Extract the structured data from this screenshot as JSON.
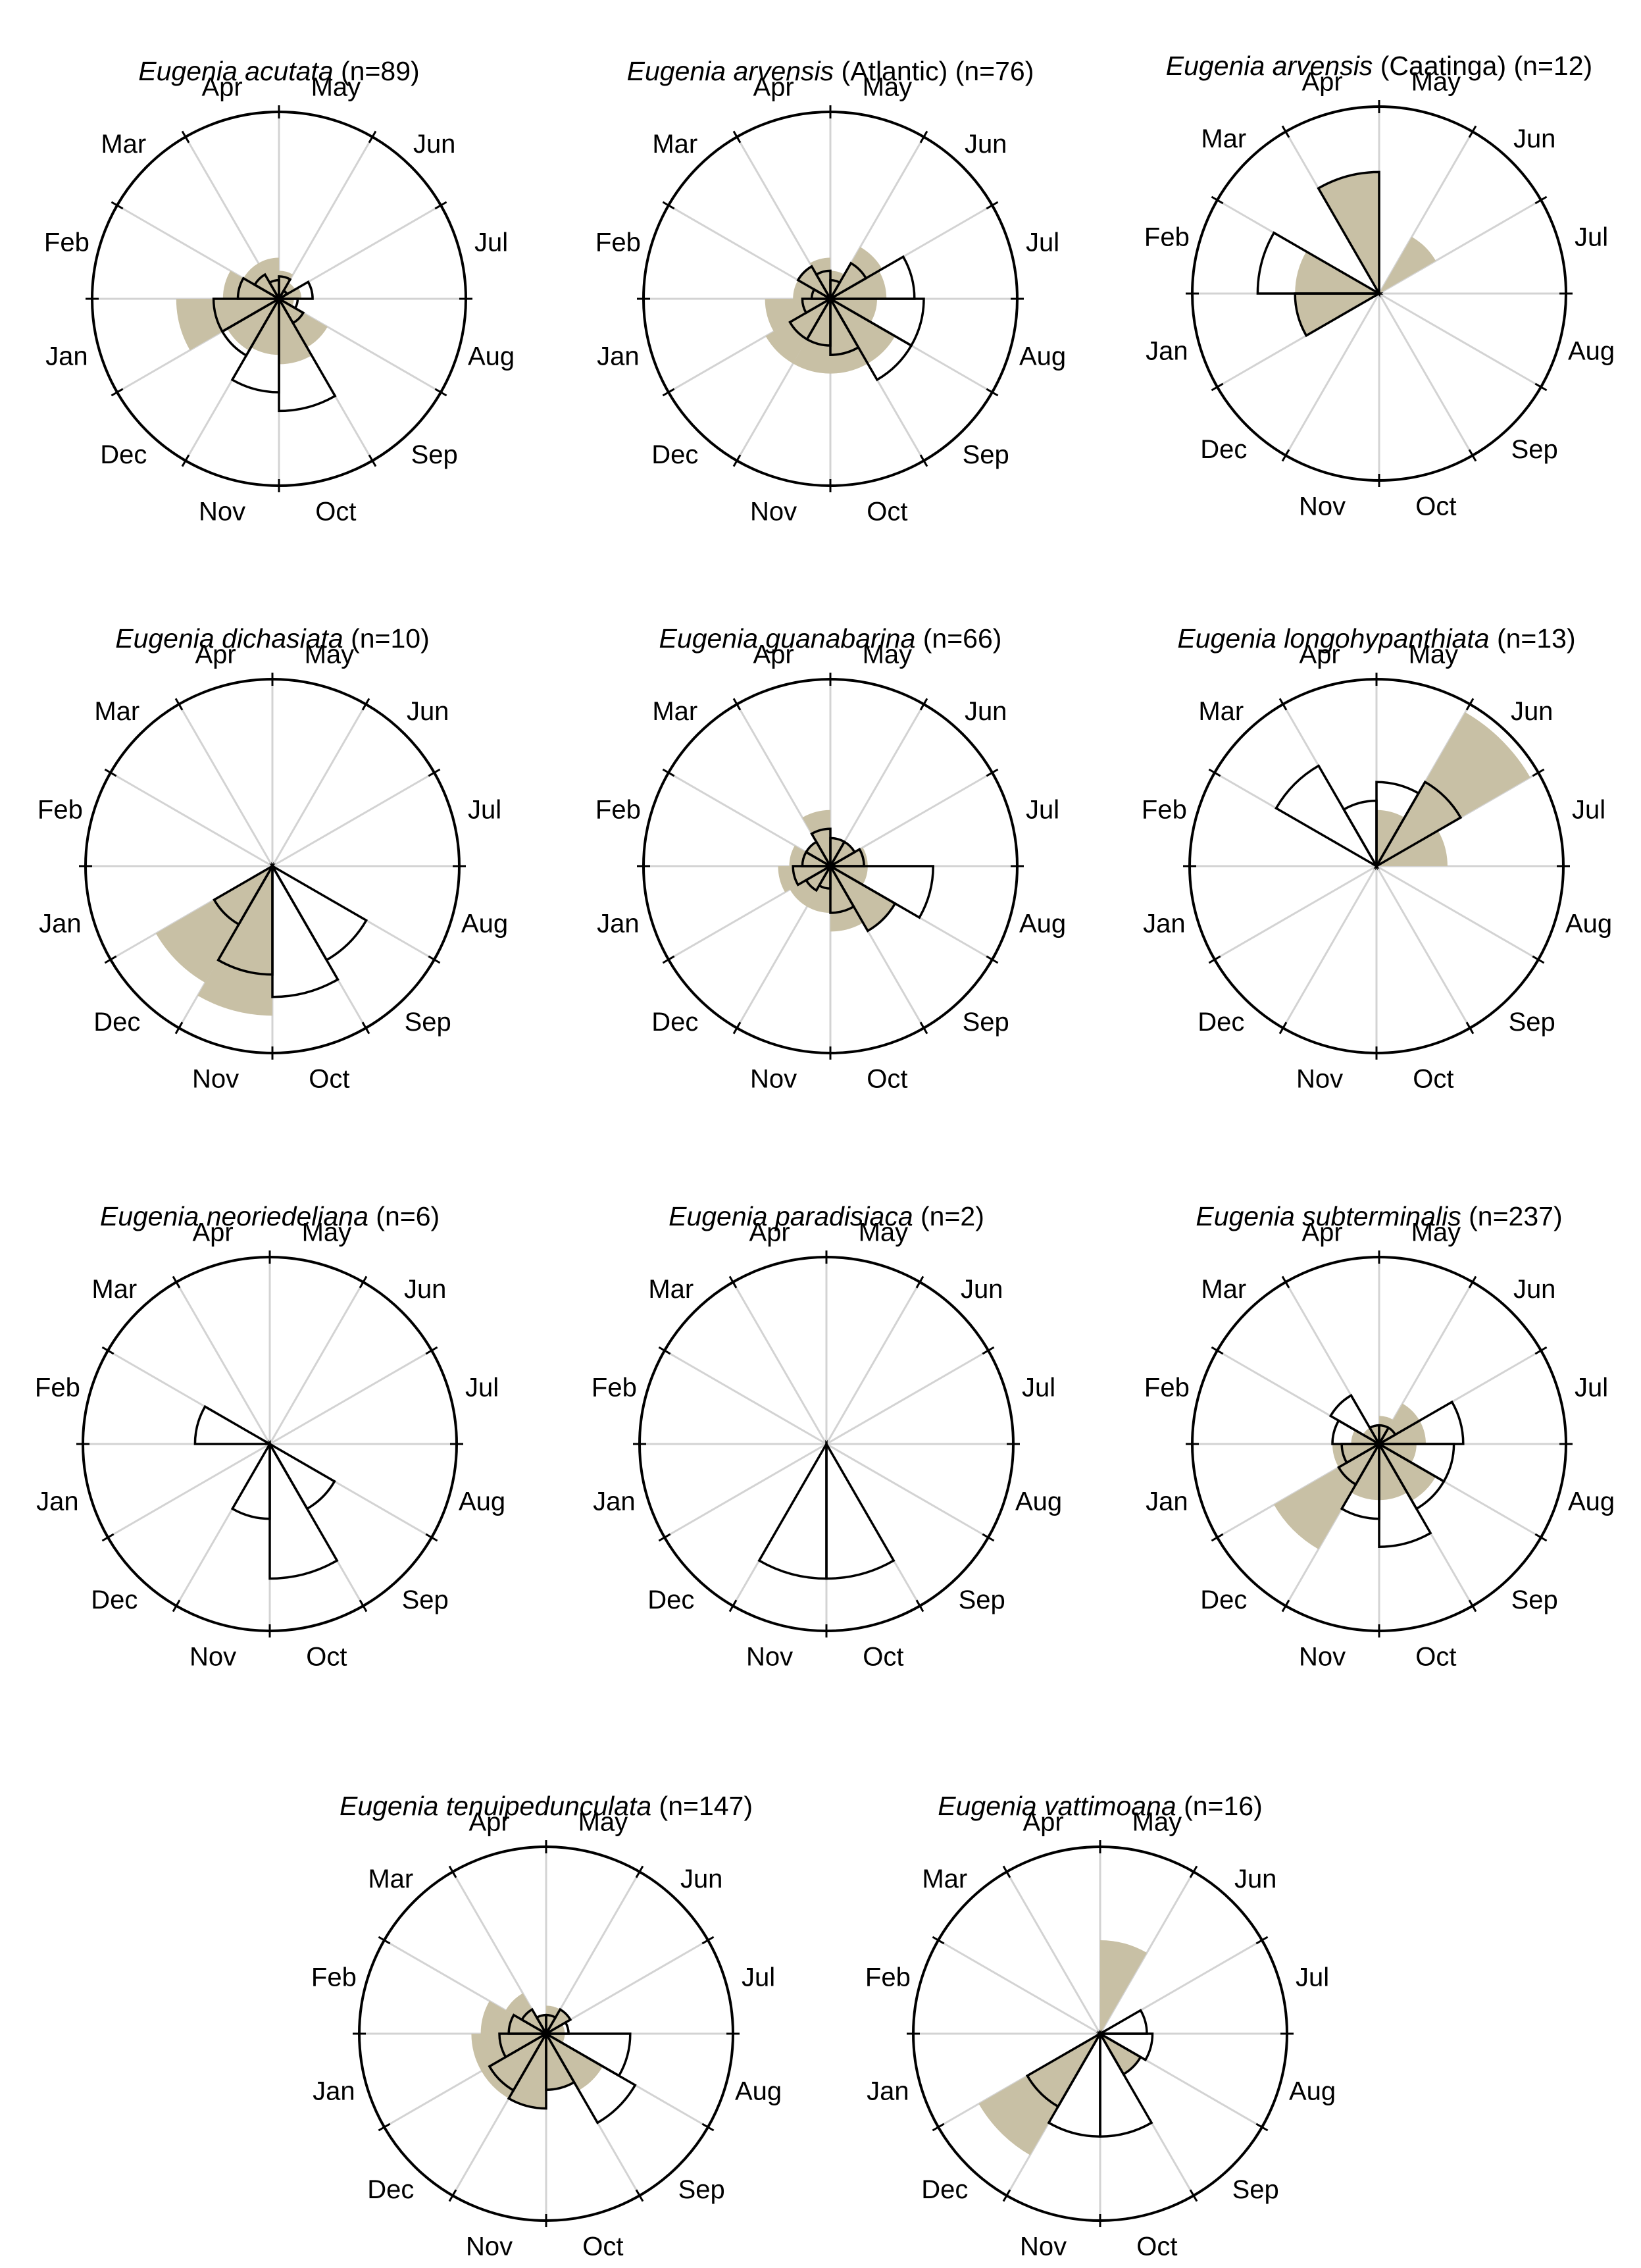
{
  "colors": {
    "flower_fill": "#ffffff",
    "flower_stroke": "#000000",
    "fruit_fill": "#c8c0a5",
    "grid": "#d3d3d3",
    "frame": "#000000"
  },
  "months": [
    "Jan",
    "Feb",
    "Mar",
    "Apr",
    "May",
    "Jun",
    "Jul",
    "Aug",
    "Sep",
    "Oct",
    "Nov",
    "Dec"
  ],
  "chart_data": [
    {
      "type": "rose",
      "species": "Eugenia acutata",
      "site": "",
      "n": "(n=89)",
      "series": [
        {
          "name": "",
          "style": "filled",
          "values": [
            0.55,
            0.3,
            0.22,
            0.22,
            0.15,
            0.1,
            0.12,
            0.08,
            0.3,
            0.35,
            0.3,
            0.32
          ]
        },
        {
          "name": "",
          "style": "outline",
          "values": [
            0.35,
            0.22,
            0.15,
            0.1,
            0.12,
            0.05,
            0.18,
            0.1,
            0.15,
            0.6,
            0.5,
            0.35
          ]
        }
      ]
    },
    {
      "type": "rose",
      "species": "Eugenia arvensis",
      "site": "(Atlantic)",
      "n": "(n=76)",
      "series": [
        {
          "name": "",
          "style": "filled",
          "values": [
            0.35,
            0.2,
            0.2,
            0.22,
            0.15,
            0.32,
            0.3,
            0.25,
            0.4,
            0.4,
            0.4,
            0.4
          ]
        },
        {
          "name": "",
          "style": "outline",
          "values": [
            0.15,
            0.1,
            0.2,
            0.15,
            0.1,
            0.22,
            0.45,
            0.5,
            0.5,
            0.3,
            0.25,
            0.25
          ]
        }
      ]
    },
    {
      "type": "rose",
      "species": "Eugenia arvensis",
      "site": "(Caatinga)",
      "n": "(n=12)",
      "series": [
        {
          "name": "",
          "style": "filled",
          "values": [
            0.45,
            0.45,
            0.0,
            0.65,
            0.0,
            0.35,
            0.0,
            0.0,
            0.0,
            0.0,
            0.0,
            0.0
          ]
        },
        {
          "name": "",
          "style": "outline",
          "values": [
            0.45,
            0.65,
            0.0,
            0.65,
            0.0,
            0.0,
            0.0,
            0.0,
            0.0,
            0.0,
            0.0,
            0.0
          ]
        }
      ]
    },
    {
      "type": "rose",
      "species": "Eugenia dichasiata",
      "site": "",
      "n": "(n=10)",
      "series": [
        {
          "name": "",
          "style": "filled",
          "values": [
            0.0,
            0.0,
            0.0,
            0.0,
            0.0,
            0.0,
            0.0,
            0.0,
            0.0,
            0.0,
            0.8,
            0.72
          ]
        },
        {
          "name": "",
          "style": "outline",
          "values": [
            0.0,
            0.0,
            0.0,
            0.0,
            0.0,
            0.0,
            0.0,
            0.0,
            0.58,
            0.7,
            0.58,
            0.36
          ]
        }
      ]
    },
    {
      "type": "rose",
      "species": "Eugenia guanabarina",
      "site": "",
      "n": "(n=66)",
      "series": [
        {
          "name": "",
          "style": "filled",
          "values": [
            0.28,
            0.22,
            0.15,
            0.3,
            0.15,
            0.15,
            0.2,
            0.2,
            0.4,
            0.35,
            0.25,
            0.25
          ]
        },
        {
          "name": "",
          "style": "outline",
          "values": [
            0.2,
            0.15,
            0.15,
            0.2,
            0.15,
            0.15,
            0.18,
            0.55,
            0.4,
            0.25,
            0.12,
            0.15
          ]
        }
      ]
    },
    {
      "type": "rose",
      "species": "Eugenia longohypanthiata",
      "site": "",
      "n": "(n=13)",
      "series": [
        {
          "name": "",
          "style": "filled",
          "values": [
            0.0,
            0.0,
            0.0,
            0.0,
            0.3,
            0.95,
            0.38,
            0.0,
            0.0,
            0.0,
            0.0,
            0.0
          ]
        },
        {
          "name": "",
          "style": "outline",
          "values": [
            0.0,
            0.0,
            0.62,
            0.35,
            0.45,
            0.52,
            0.0,
            0.0,
            0.0,
            0.0,
            0.0,
            0.0
          ]
        }
      ]
    },
    {
      "type": "rose",
      "species": "Eugenia neoriedeliana",
      "site": "",
      "n": "(n=6)",
      "series": [
        {
          "name": "",
          "style": "filled",
          "values": [
            0.0,
            0.0,
            0.0,
            0.0,
            0.0,
            0.0,
            0.0,
            0.0,
            0.0,
            0.0,
            0.0,
            0.0
          ]
        },
        {
          "name": "",
          "style": "outline",
          "values": [
            0.0,
            0.4,
            0.0,
            0.0,
            0.0,
            0.0,
            0.0,
            0.0,
            0.4,
            0.72,
            0.4,
            0.0
          ]
        }
      ]
    },
    {
      "type": "rose",
      "species": "Eugenia paradisiaca",
      "site": "",
      "n": "(n=2)",
      "series": [
        {
          "name": "",
          "style": "filled",
          "values": [
            0.0,
            0.0,
            0.0,
            0.0,
            0.0,
            0.0,
            0.0,
            0.0,
            0.0,
            0.0,
            0.0,
            0.0
          ]
        },
        {
          "name": "",
          "style": "outline",
          "values": [
            0.0,
            0.0,
            0.0,
            0.0,
            0.0,
            0.0,
            0.0,
            0.0,
            0.0,
            0.72,
            0.72,
            0.0
          ]
        }
      ]
    },
    {
      "type": "rose",
      "species": "Eugenia subterminalis",
      "site": "",
      "n": "(n=237)",
      "series": [
        {
          "name": "",
          "style": "filled",
          "values": [
            0.25,
            0.15,
            0.1,
            0.1,
            0.15,
            0.25,
            0.25,
            0.2,
            0.35,
            0.3,
            0.3,
            0.65
          ]
        },
        {
          "name": "",
          "style": "outline",
          "values": [
            0.2,
            0.25,
            0.3,
            0.1,
            0.1,
            0.1,
            0.45,
            0.4,
            0.4,
            0.55,
            0.4,
            0.25
          ]
        }
      ]
    },
    {
      "type": "rose",
      "species": "Eugenia tenuipedunculata",
      "site": "",
      "n": "(n=147)",
      "series": [
        {
          "name": "",
          "style": "filled",
          "values": [
            0.4,
            0.35,
            0.25,
            0.1,
            0.15,
            0.15,
            0.1,
            0.1,
            0.35,
            0.3,
            0.4,
            0.4
          ]
        },
        {
          "name": "",
          "style": "outline",
          "values": [
            0.25,
            0.2,
            0.15,
            0.1,
            0.1,
            0.15,
            0.12,
            0.45,
            0.55,
            0.3,
            0.4,
            0.35
          ]
        }
      ]
    },
    {
      "type": "rose",
      "species": "Eugenia vattimoana",
      "site": "",
      "n": "(n=16)",
      "series": [
        {
          "name": "",
          "style": "filled",
          "values": [
            0.0,
            0.0,
            0.0,
            0.0,
            0.5,
            0.0,
            0.0,
            0.0,
            0.25,
            0.0,
            0.0,
            0.75
          ]
        },
        {
          "name": "",
          "style": "outline",
          "values": [
            0.0,
            0.0,
            0.0,
            0.0,
            0.0,
            0.0,
            0.25,
            0.28,
            0.25,
            0.55,
            0.55,
            0.45
          ]
        }
      ]
    }
  ]
}
